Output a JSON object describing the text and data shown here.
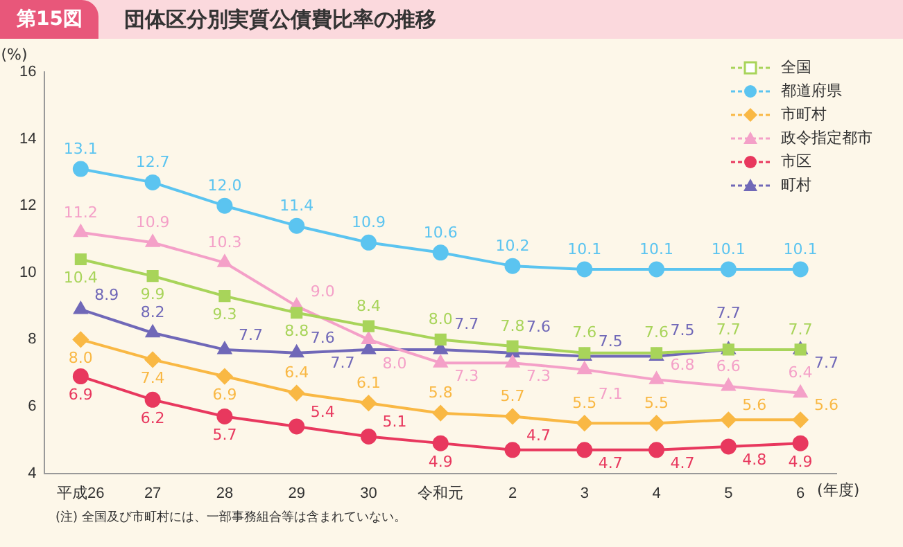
{
  "chart_data": {
    "type": "line",
    "subtitle": "第15図",
    "title": "団体区分別実質公債費比率の推移",
    "ylabel": "(%)",
    "xlabel": "(年度)",
    "categories": [
      "平成26",
      "27",
      "28",
      "29",
      "30",
      "令和元",
      "2",
      "3",
      "4",
      "5",
      "6"
    ],
    "series": [
      {
        "name": "全国",
        "color": "#a8d45a",
        "marker": "square",
        "values": [
          10.4,
          9.9,
          9.3,
          8.8,
          8.4,
          8.0,
          7.8,
          7.6,
          7.6,
          7.7,
          7.7
        ],
        "value_labels": [
          "10.4",
          "9.9",
          "9.3",
          "8.8",
          "8.4",
          "8.0",
          "7.8",
          "7.6",
          "7.6",
          "7.7",
          "7.7"
        ]
      },
      {
        "name": "都道府県",
        "color": "#5bc4f0",
        "marker": "circle",
        "values": [
          13.1,
          12.7,
          12.0,
          11.4,
          10.9,
          10.6,
          10.2,
          10.1,
          10.1,
          10.1,
          10.1
        ],
        "value_labels": [
          "13.1",
          "12.7",
          "12.0",
          "11.4",
          "10.9",
          "10.6",
          "10.2",
          "10.1",
          "10.1",
          "10.1",
          "10.1"
        ]
      },
      {
        "name": "市町村",
        "color": "#f9b844",
        "marker": "diamond",
        "values": [
          8.0,
          7.4,
          6.9,
          6.4,
          6.1,
          5.8,
          5.7,
          5.5,
          5.5,
          5.6,
          5.6
        ],
        "value_labels": [
          "8.0",
          "7.4",
          "6.9",
          "6.4",
          "6.1",
          "5.8",
          "5.7",
          "5.5",
          "5.5",
          "5.6",
          "5.6"
        ]
      },
      {
        "name": "政令指定都市",
        "color": "#f4a0c8",
        "marker": "triangle",
        "values": [
          11.2,
          10.9,
          10.3,
          9.0,
          8.0,
          7.3,
          7.3,
          7.1,
          6.8,
          6.6,
          6.4
        ],
        "value_labels": [
          "11.2",
          "10.9",
          "10.3",
          "9.0",
          "8.0",
          "7.3",
          "7.3",
          "7.1",
          "6.8",
          "6.6",
          "6.4"
        ]
      },
      {
        "name": "市区",
        "color": "#e8385e",
        "marker": "circle",
        "values": [
          6.9,
          6.2,
          5.7,
          5.4,
          5.1,
          4.9,
          4.7,
          4.7,
          4.7,
          4.8,
          4.9
        ],
        "value_labels": [
          "6.9",
          "6.2",
          "5.7",
          "5.4",
          "5.1",
          "4.9",
          "4.7",
          "4.7",
          "4.7",
          "4.8",
          "4.9"
        ]
      },
      {
        "name": "町村",
        "color": "#7068b8",
        "marker": "triangle",
        "values": [
          8.9,
          8.2,
          7.7,
          7.6,
          7.7,
          7.7,
          7.6,
          7.5,
          7.5,
          7.7,
          7.7
        ],
        "value_labels": [
          "8.9",
          "8.2",
          "7.7",
          "7.6",
          "7.7",
          "7.7",
          "7.6",
          "7.5",
          "7.5",
          "7.7",
          "7.7"
        ]
      }
    ],
    "ylim": [
      4,
      16
    ],
    "yticks": [
      4,
      6,
      8,
      10,
      12,
      14,
      16
    ],
    "grid": false,
    "legend": "top right",
    "annotations": [
      "(注) 全国及び市町村には、一部事務組合等は含まれていない。"
    ]
  }
}
